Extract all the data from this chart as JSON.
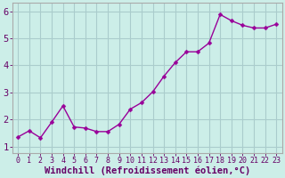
{
  "x": [
    0,
    1,
    2,
    3,
    4,
    5,
    6,
    7,
    8,
    9,
    10,
    11,
    12,
    13,
    14,
    15,
    16,
    17,
    18,
    19,
    20,
    21,
    22,
    23
  ],
  "y": [
    1.35,
    1.58,
    1.32,
    1.9,
    2.5,
    1.72,
    1.68,
    1.55,
    1.55,
    1.82,
    2.38,
    2.62,
    3.02,
    3.6,
    4.1,
    4.5,
    4.5,
    4.82,
    5.88,
    5.65,
    5.48,
    5.38,
    5.38,
    5.52
  ],
  "line_color": "#990099",
  "marker_color": "#990099",
  "bg_color": "#cceee8",
  "grid_color": "#aacccc",
  "spine_color": "#aaaaaa",
  "xlabel": "Windchill (Refroidissement éolien,°C)",
  "xlim": [
    -0.5,
    23.5
  ],
  "ylim": [
    0.75,
    6.3
  ],
  "yticks": [
    1,
    2,
    3,
    4,
    5,
    6
  ],
  "xticks": [
    0,
    1,
    2,
    3,
    4,
    5,
    6,
    7,
    8,
    9,
    10,
    11,
    12,
    13,
    14,
    15,
    16,
    17,
    18,
    19,
    20,
    21,
    22,
    23
  ],
  "xtick_labels": [
    "0",
    "1",
    "2",
    "3",
    "4",
    "5",
    "6",
    "7",
    "8",
    "9",
    "10",
    "11",
    "12",
    "13",
    "14",
    "15",
    "16",
    "17",
    "18",
    "19",
    "20",
    "21",
    "22",
    "23"
  ],
  "font_color": "#660066",
  "tick_label_fontsize": 6,
  "xlabel_fontsize": 7.5,
  "ytick_fontsize": 7.5,
  "marker_size": 2.5,
  "line_width": 1.0
}
